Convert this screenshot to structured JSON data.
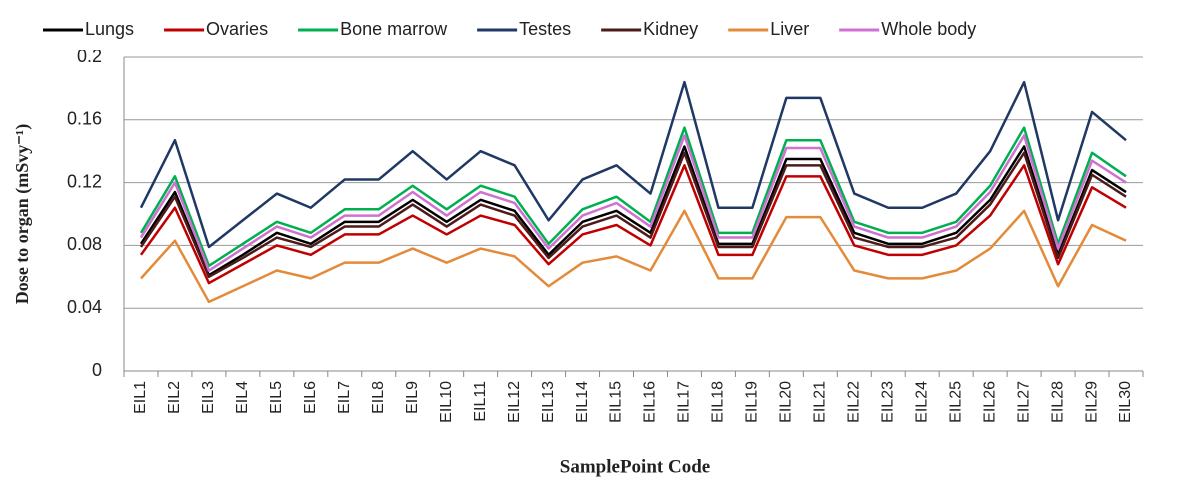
{
  "chart_data": {
    "type": "line",
    "ylabel": "Dose to organ (mSvy⁻¹)",
    "xlabel": "SamplePoint  Code",
    "categories": [
      "EIL1",
      "EIL2",
      "EIL3",
      "EIL4",
      "EIL5",
      "EIL6",
      "EIL7",
      "EIL8",
      "EIL9",
      "EIL10",
      "EIL11",
      "EIL12",
      "EIL13",
      "EIL14",
      "EIL15",
      "EIL16",
      "EIL17",
      "EIL18",
      "EIL19",
      "EIL20",
      "EIL21",
      "EIL22",
      "EIL23",
      "EIL24",
      "EIL25",
      "EIL26",
      "EIL27",
      "EIL28",
      "EIL29",
      "EIL30"
    ],
    "ylim": [
      0,
      0.2
    ],
    "yticks": [
      0,
      0.04,
      0.08,
      0.12,
      0.16,
      0.2
    ],
    "grid": true,
    "legend": "top",
    "series": [
      {
        "name": "Lungs",
        "color": "#000000",
        "values": [
          0.081,
          0.114,
          0.061,
          0.074,
          0.088,
          0.081,
          0.095,
          0.095,
          0.109,
          0.095,
          0.109,
          0.102,
          0.074,
          0.095,
          0.102,
          0.088,
          0.143,
          0.081,
          0.081,
          0.135,
          0.135,
          0.088,
          0.081,
          0.081,
          0.088,
          0.109,
          0.143,
          0.074,
          0.128,
          0.114
        ]
      },
      {
        "name": "Ovaries",
        "color": "#c00000",
        "values": [
          0.074,
          0.104,
          0.056,
          0.068,
          0.08,
          0.074,
          0.087,
          0.087,
          0.099,
          0.087,
          0.099,
          0.093,
          0.068,
          0.087,
          0.093,
          0.08,
          0.131,
          0.074,
          0.074,
          0.124,
          0.124,
          0.08,
          0.074,
          0.074,
          0.08,
          0.099,
          0.131,
          0.068,
          0.117,
          0.104
        ]
      },
      {
        "name": "Bone marrow",
        "color": "#00b050",
        "values": [
          0.088,
          0.124,
          0.067,
          0.081,
          0.095,
          0.088,
          0.103,
          0.103,
          0.118,
          0.103,
          0.118,
          0.111,
          0.081,
          0.103,
          0.111,
          0.095,
          0.155,
          0.088,
          0.088,
          0.147,
          0.147,
          0.095,
          0.088,
          0.088,
          0.095,
          0.118,
          0.155,
          0.081,
          0.139,
          0.124
        ]
      },
      {
        "name": "Testes",
        "color": "#1f3864",
        "values": [
          0.104,
          0.147,
          0.079,
          0.096,
          0.113,
          0.104,
          0.122,
          0.122,
          0.14,
          0.122,
          0.14,
          0.131,
          0.096,
          0.122,
          0.131,
          0.113,
          0.184,
          0.104,
          0.104,
          0.174,
          0.174,
          0.113,
          0.104,
          0.104,
          0.113,
          0.14,
          0.184,
          0.096,
          0.165,
          0.147
        ]
      },
      {
        "name": "Kidney",
        "color": "#4d1a1a",
        "values": [
          0.079,
          0.111,
          0.06,
          0.072,
          0.085,
          0.079,
          0.092,
          0.092,
          0.106,
          0.092,
          0.106,
          0.099,
          0.072,
          0.092,
          0.099,
          0.085,
          0.139,
          0.079,
          0.079,
          0.131,
          0.131,
          0.085,
          0.079,
          0.079,
          0.085,
          0.106,
          0.139,
          0.072,
          0.125,
          0.111
        ]
      },
      {
        "name": "Liver",
        "color": "#e38b3a",
        "values": [
          0.059,
          0.083,
          0.044,
          0.054,
          0.064,
          0.059,
          0.069,
          0.069,
          0.078,
          0.069,
          0.078,
          0.073,
          0.054,
          0.069,
          0.073,
          0.064,
          0.102,
          0.059,
          0.059,
          0.098,
          0.098,
          0.064,
          0.059,
          0.059,
          0.064,
          0.078,
          0.102,
          0.054,
          0.093,
          0.083
        ]
      },
      {
        "name": "Whole body",
        "color": "#d070d0",
        "values": [
          0.085,
          0.12,
          0.064,
          0.078,
          0.092,
          0.085,
          0.099,
          0.099,
          0.114,
          0.099,
          0.114,
          0.107,
          0.078,
          0.099,
          0.107,
          0.092,
          0.15,
          0.085,
          0.085,
          0.142,
          0.142,
          0.092,
          0.085,
          0.085,
          0.092,
          0.114,
          0.15,
          0.078,
          0.134,
          0.12
        ]
      }
    ]
  }
}
